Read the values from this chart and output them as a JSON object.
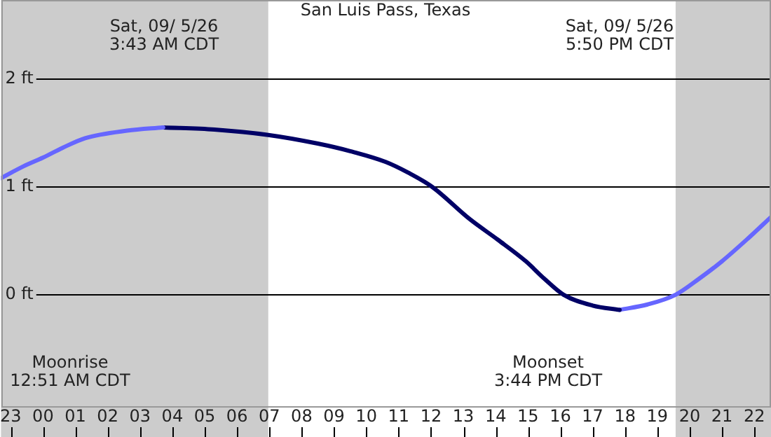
{
  "chart_data": {
    "type": "line",
    "title": "San Luis Pass, Texas",
    "xlim": [
      "--09-04T22:42",
      "--09-05T22:31"
    ],
    "ylim": [
      -1.04,
      2.73
    ],
    "xticks": [
      {
        "value": "--09-04T23:00",
        "label": "23"
      },
      {
        "value": "--09-05T00:00",
        "label": "00"
      },
      {
        "value": "--09-05T01:00",
        "label": "01"
      },
      {
        "value": "--09-05T02:00",
        "label": "02"
      },
      {
        "value": "--09-05T03:00",
        "label": "03"
      },
      {
        "value": "--09-05T04:00",
        "label": "04"
      },
      {
        "value": "--09-05T05:00",
        "label": "05"
      },
      {
        "value": "--09-05T06:00",
        "label": "06"
      },
      {
        "value": "--09-05T07:00",
        "label": "07"
      },
      {
        "value": "--09-05T08:00",
        "label": "08"
      },
      {
        "value": "--09-05T09:00",
        "label": "09"
      },
      {
        "value": "--09-05T10:00",
        "label": "10"
      },
      {
        "value": "--09-05T11:00",
        "label": "11"
      },
      {
        "value": "--09-05T12:00",
        "label": "12"
      },
      {
        "value": "--09-05T13:00",
        "label": "13"
      },
      {
        "value": "--09-05T14:00",
        "label": "14"
      },
      {
        "value": "--09-05T15:00",
        "label": "15"
      },
      {
        "value": "--09-05T16:00",
        "label": "16"
      },
      {
        "value": "--09-05T17:00",
        "label": "17"
      },
      {
        "value": "--09-05T18:00",
        "label": "18"
      },
      {
        "value": "--09-05T19:00",
        "label": "19"
      },
      {
        "value": "--09-05T20:00",
        "label": "20"
      },
      {
        "value": "--09-05T21:00",
        "label": "21"
      },
      {
        "value": "--09-05T22:00",
        "label": "22"
      }
    ],
    "yticks": [
      {
        "value": 0,
        "label": "0 ft"
      },
      {
        "value": 1,
        "label": "1 ft"
      },
      {
        "value": 2,
        "label": "2 ft"
      }
    ],
    "series": [
      {
        "color": "#6666ff",
        "x": [
          "--09-04T22:42",
          "--09-04T23:24",
          "--09-05T00:00",
          "--09-05T00:36",
          "--09-05T01:18",
          "--09-05T02:36",
          "--09-05T03:43"
        ],
        "values": [
          1.08,
          1.19,
          1.27,
          1.36,
          1.45,
          1.52,
          1.55
        ]
      },
      {
        "color": "#000066",
        "x": [
          "--09-05T03:43",
          "--09-05T05:18",
          "--09-05T06:58",
          "--09-05T08:30",
          "--09-05T09:30",
          "--09-05T10:36",
          "--09-05T11:18",
          "--09-05T12:02",
          "--09-05T13:12",
          "--09-05T14:04",
          "--09-05T14:56",
          "--09-05T15:30",
          "--09-05T16:06",
          "--09-05T17:00",
          "--09-05T17:50"
        ],
        "values": [
          1.55,
          1.53,
          1.48,
          1.4,
          1.33,
          1.23,
          1.13,
          1.0,
          0.7,
          0.51,
          0.31,
          0.15,
          0,
          -0.1,
          -0.14
        ]
      },
      {
        "color": "#6666ff",
        "x": [
          "--09-05T17:50",
          "--09-05T18:42",
          "--09-05T19:34",
          "--09-05T20:18",
          "--09-05T21:00",
          "--09-05T21:48",
          "--09-05T22:31"
        ],
        "values": [
          -0.14,
          -0.09,
          0,
          0.15,
          0.31,
          0.52,
          0.72
        ]
      }
    ],
    "bands": [
      {
        "axis": "x",
        "from": "--09-04T22:42",
        "to": "--09-05T06:58",
        "color": "#cccccc"
      },
      {
        "axis": "x",
        "from": "--09-05T19:34",
        "to": "--09-05T22:31",
        "color": "#cccccc"
      }
    ],
    "annotations": [
      "Sat, 09/ 5/26\n3:43 AM CDT",
      "Sat, 09/ 5/26\n5:50 PM CDT",
      "Moonrise\n12:51 AM CDT",
      "Moonset\n3:44 PM CDT"
    ],
    "grid": "y",
    "legend": false,
    "marker": "none",
    "line_style": "solid"
  }
}
